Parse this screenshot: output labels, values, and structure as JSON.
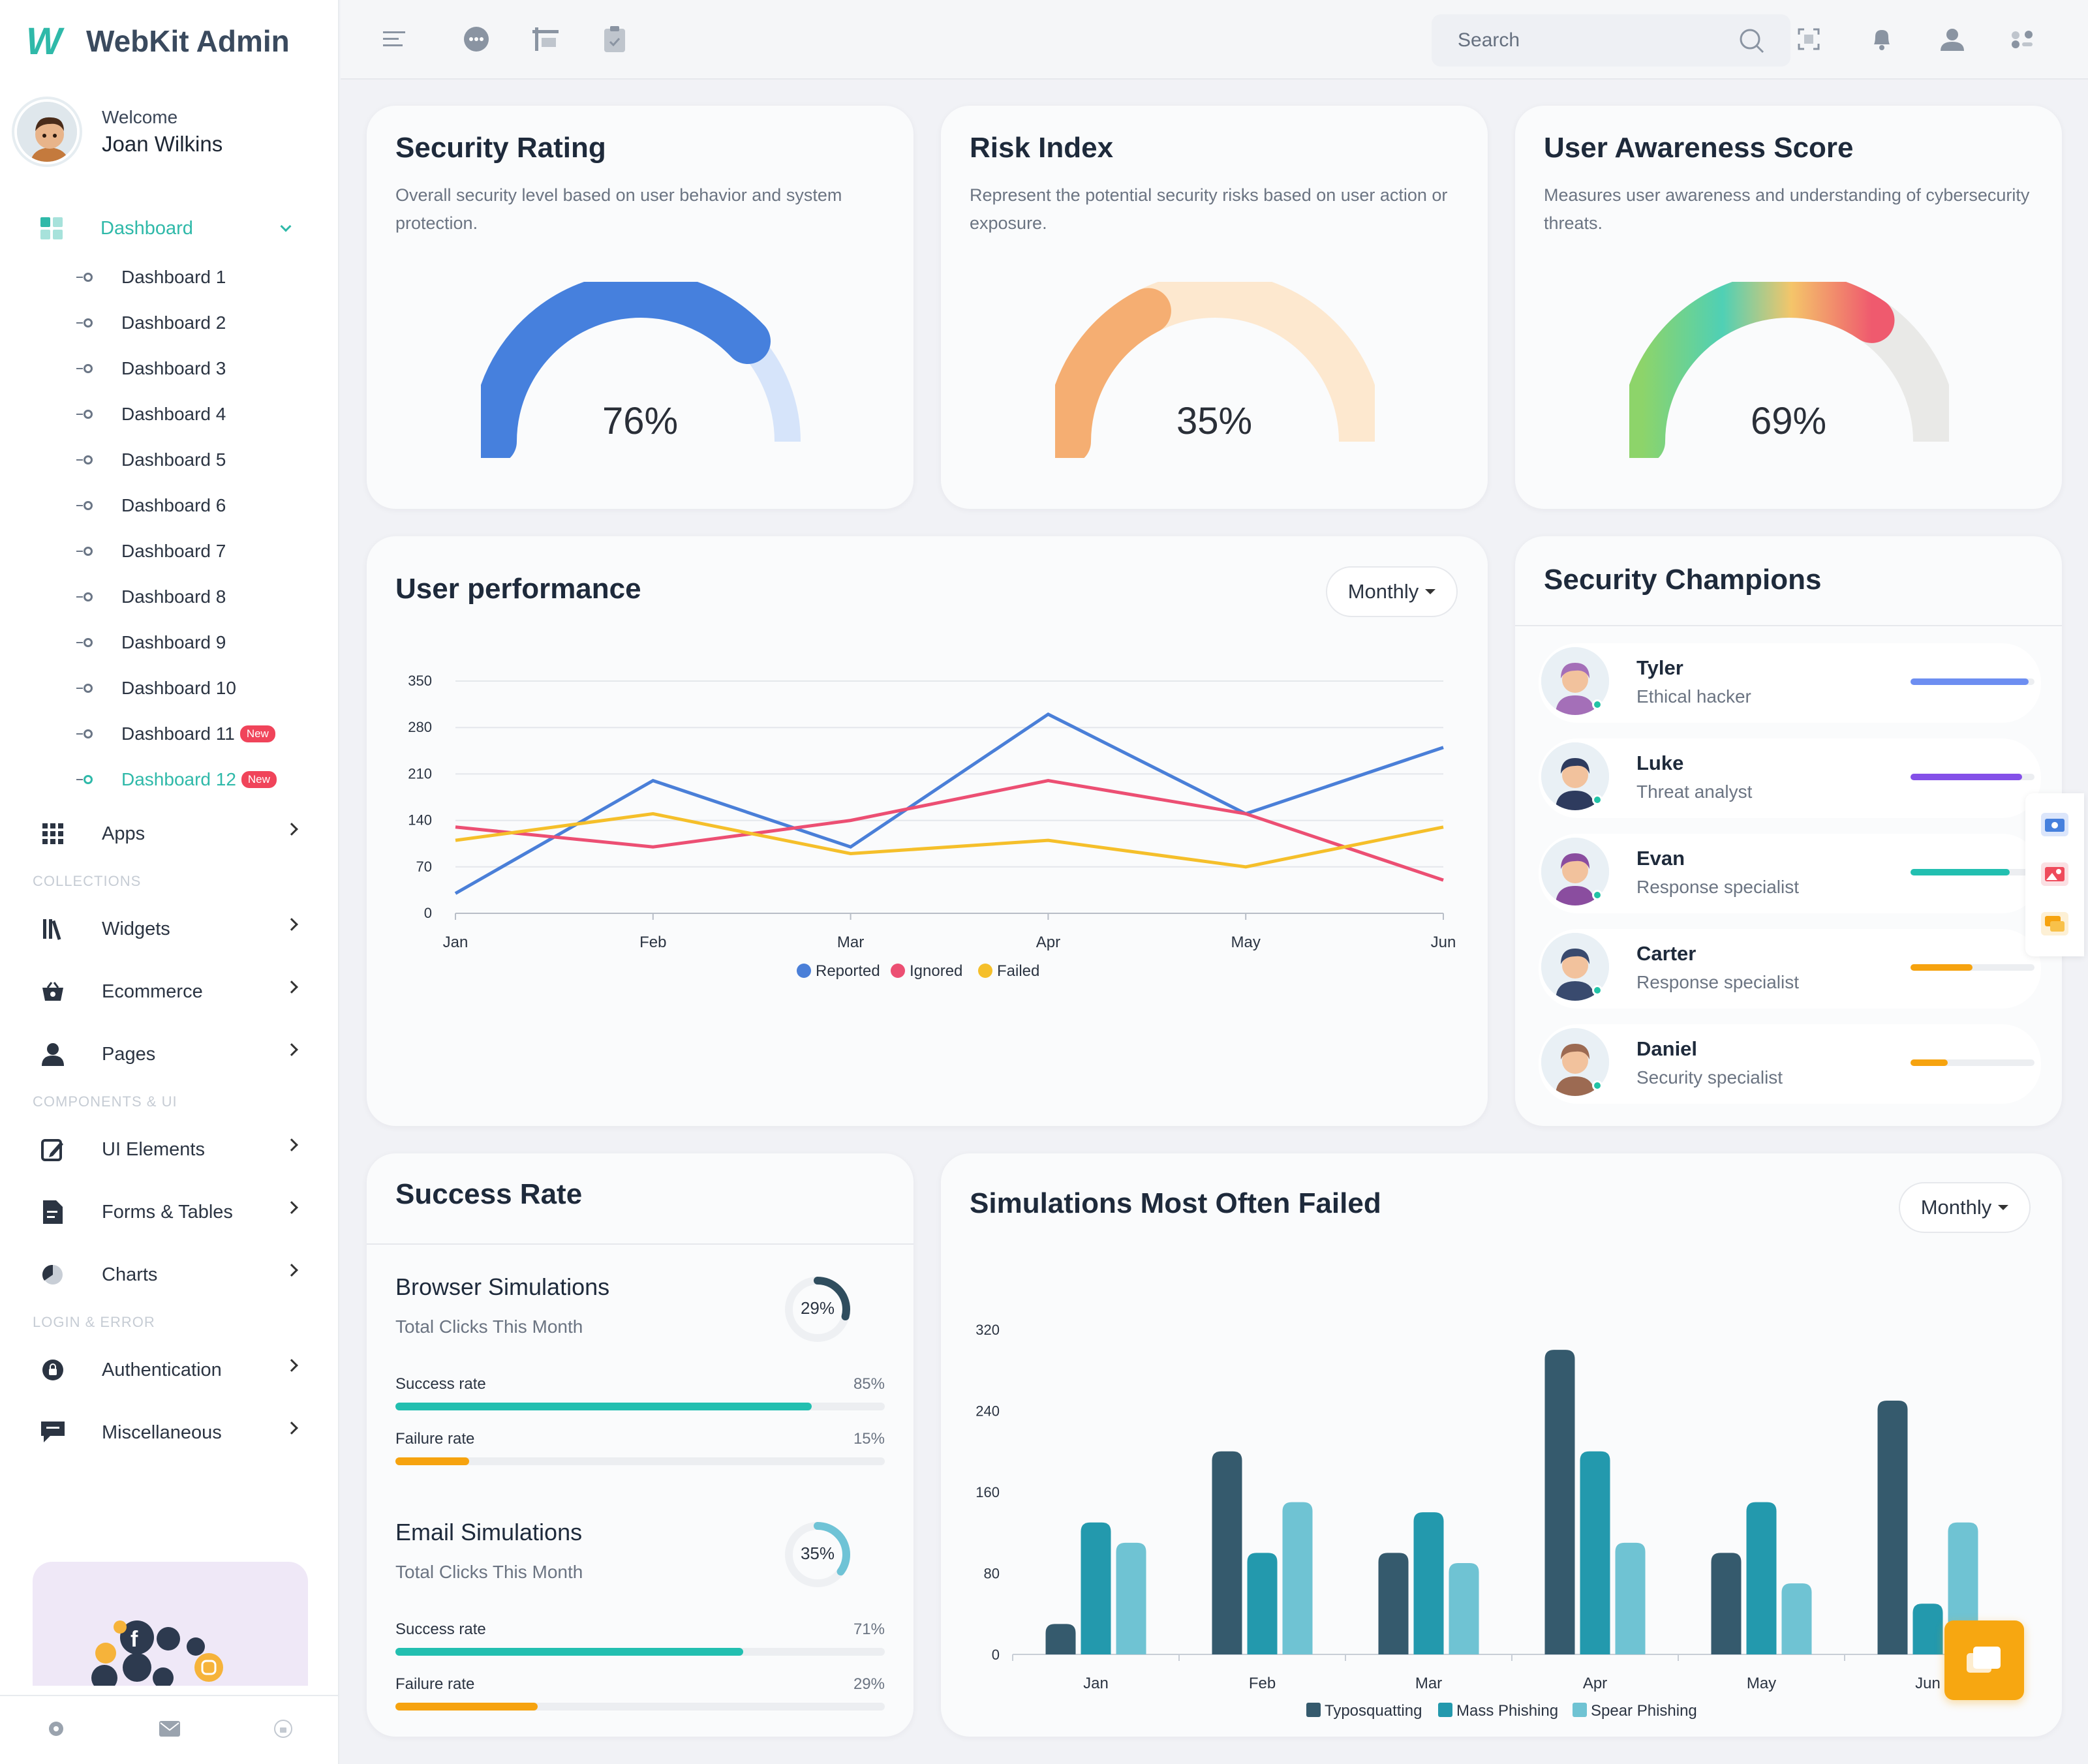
{
  "app": {
    "logo": "W",
    "name": "WebKit Admin"
  },
  "user": {
    "welcome": "Welcome",
    "name": "Joan Wilkins"
  },
  "nav": {
    "dashboard_label": "Dashboard",
    "dashboards": [
      {
        "label": "Dashboard 1"
      },
      {
        "label": "Dashboard 2"
      },
      {
        "label": "Dashboard 3"
      },
      {
        "label": "Dashboard 4"
      },
      {
        "label": "Dashboard 5"
      },
      {
        "label": "Dashboard 6"
      },
      {
        "label": "Dashboard 7"
      },
      {
        "label": "Dashboard 8"
      },
      {
        "label": "Dashboard 9"
      },
      {
        "label": "Dashboard 10"
      },
      {
        "label": "Dashboard 11",
        "badge": "New"
      },
      {
        "label": "Dashboard 12",
        "badge": "New"
      }
    ],
    "apps": "Apps",
    "sections": {
      "collections": "COLLECTIONS",
      "components": "COMPONENTS & UI",
      "login": "LOGIN & ERROR"
    },
    "widgets": "Widgets",
    "ecommerce": "Ecommerce",
    "pages": "Pages",
    "ui_elements": "UI Elements",
    "forms_tables": "Forms & Tables",
    "charts": "Charts",
    "authentication": "Authentication",
    "miscellaneous": "Miscellaneous"
  },
  "search": {
    "placeholder": "Search"
  },
  "cards": {
    "security": {
      "title": "Security Rating",
      "desc": "Overall security level based on user behavior and system protection.",
      "value": "76%",
      "fraction": 0.76
    },
    "risk": {
      "title": "Risk Index",
      "desc": "Represent the potential security risks based on user action or exposure.",
      "value": "35%",
      "fraction": 0.35
    },
    "awareness": {
      "title": "User Awareness Score",
      "desc": "Measures user awareness and understanding of cybersecurity threats.",
      "value": "69%",
      "fraction": 0.69
    }
  },
  "performance": {
    "title": "User performance",
    "button": "Monthly",
    "chart_data": {
      "type": "line",
      "categories": [
        "Jan",
        "Feb",
        "Mar",
        "Apr",
        "May",
        "Jun"
      ],
      "ylim": [
        0,
        350
      ],
      "yticks": [
        "0",
        "70",
        "140",
        "210",
        "280",
        "350"
      ],
      "grid": true,
      "legend_position": "bottom",
      "series": [
        {
          "name": "Reported",
          "color": "#4a7fd8",
          "values": [
            30,
            200,
            100,
            300,
            150,
            250
          ]
        },
        {
          "name": "Ignored",
          "color": "#ec4f73",
          "values": [
            130,
            100,
            140,
            200,
            150,
            50
          ]
        },
        {
          "name": "Failed",
          "color": "#f5bf2a",
          "values": [
            110,
            150,
            90,
            110,
            70,
            130
          ]
        }
      ]
    }
  },
  "champions": {
    "title": "Security Champions",
    "items": [
      {
        "name": "Tyler",
        "role": "Ethical hacker",
        "progress": 0.95,
        "color": "#6d8ef1"
      },
      {
        "name": "Luke",
        "role": "Threat analyst",
        "progress": 0.9,
        "color": "#8450e8"
      },
      {
        "name": "Evan",
        "role": "Response specialist",
        "progress": 0.8,
        "color": "#22bfb0"
      },
      {
        "name": "Carter",
        "role": "Response specialist",
        "progress": 0.5,
        "color": "#f6a30f"
      },
      {
        "name": "Daniel",
        "role": "Security specialist",
        "progress": 0.3,
        "color": "#f6a30f"
      }
    ]
  },
  "success": {
    "title": "Success Rate",
    "items": [
      {
        "title": "Browser Simulations",
        "sub": "Total Clicks This Month",
        "pct": "29%",
        "pct_value": 0.29,
        "ring_color": "#2f4d5e",
        "success_label": "Success rate",
        "success": "85%",
        "success_value": 0.85,
        "failure_label": "Failure rate",
        "failure": "15%",
        "failure_value": 0.15
      },
      {
        "title": "Email Simulations",
        "sub": "Total Clicks This Month",
        "pct": "35%",
        "pct_value": 0.35,
        "ring_color": "#6fc3d6",
        "success_label": "Success rate",
        "success": "71%",
        "success_value": 0.71,
        "failure_label": "Failure rate",
        "failure": "29%",
        "failure_value": 0.29
      }
    ],
    "success_color": "#22bfb0",
    "failure_color": "#f6a30f"
  },
  "simulations": {
    "title": "Simulations Most Often Failed",
    "button": "Monthly",
    "chart_data": {
      "type": "bar",
      "categories": [
        "Jan",
        "Feb",
        "Mar",
        "Apr",
        "May",
        "Jun"
      ],
      "ylim": [
        0,
        320
      ],
      "yticks": [
        "0",
        "80",
        "160",
        "240",
        "320"
      ],
      "legend_position": "bottom",
      "series": [
        {
          "name": "Typosquatting",
          "color": "#355a6d",
          "values": [
            30,
            200,
            100,
            300,
            100,
            250
          ]
        },
        {
          "name": "Mass Phishing",
          "color": "#2399ad",
          "values": [
            130,
            100,
            140,
            200,
            150,
            50
          ]
        },
        {
          "name": "Spear Phishing",
          "color": "#6fc3d3",
          "values": [
            110,
            150,
            90,
            110,
            70,
            130
          ]
        }
      ]
    }
  }
}
